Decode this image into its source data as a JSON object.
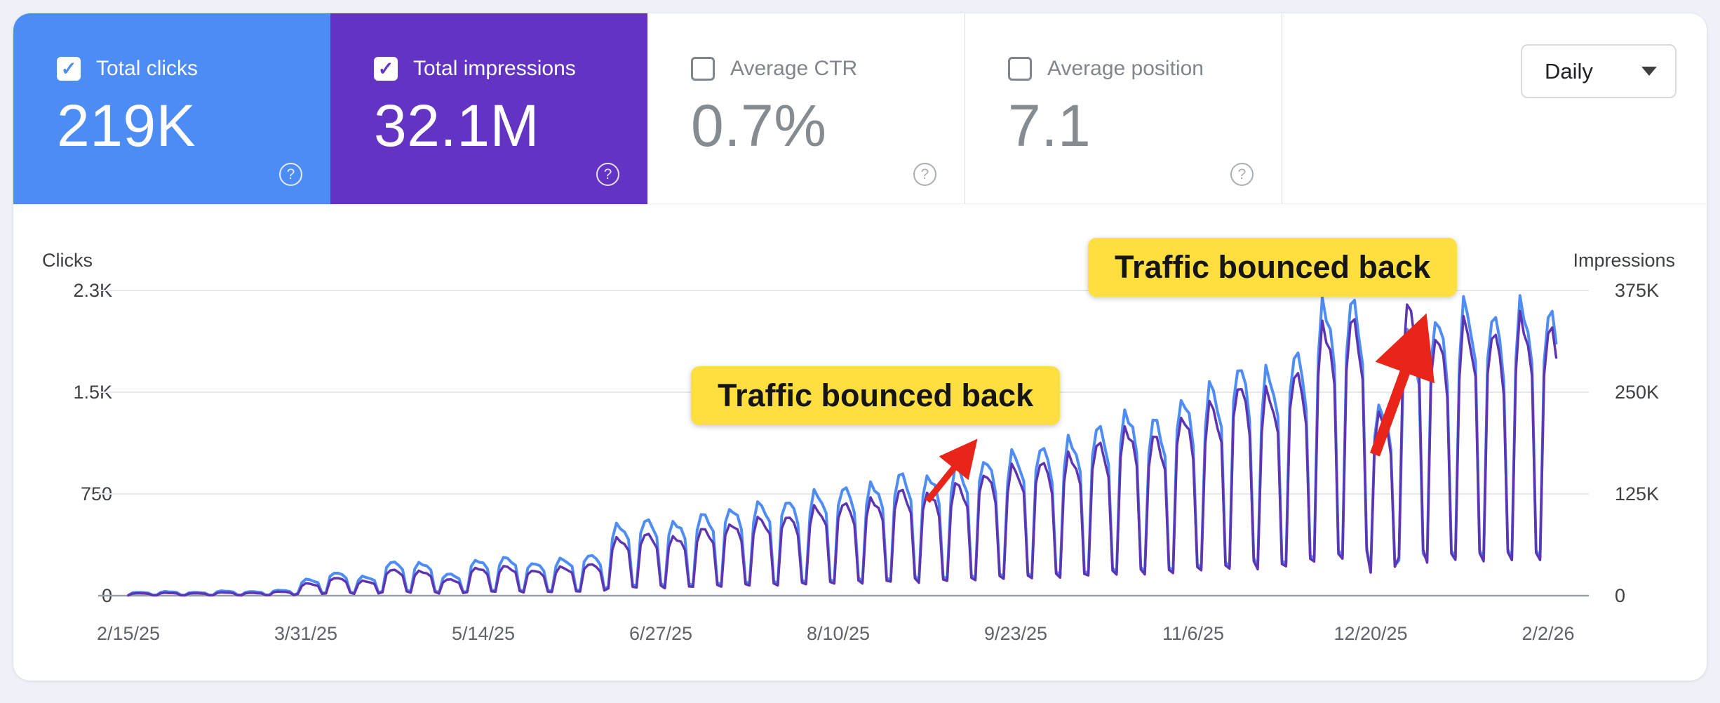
{
  "controls": {
    "granularity": "Daily"
  },
  "metrics": [
    {
      "id": "total-clicks",
      "label": "Total clicks",
      "value": "219K",
      "checked": true,
      "bg": "#4e8cf5",
      "label_color": "#ffffff",
      "value_color": "#ffffff",
      "accent": "#4e8cf5",
      "help_color": "#ffffff"
    },
    {
      "id": "total-impressions",
      "label": "Total impressions",
      "value": "32.1M",
      "checked": true,
      "bg": "#6334c4",
      "label_color": "#ffffff",
      "value_color": "#ffffff",
      "accent": "#6334c4",
      "help_color": "#ffffff"
    },
    {
      "id": "average-ctr",
      "label": "Average CTR",
      "value": "0.7%",
      "checked": false,
      "bg": "#ffffff",
      "label_color": "#80868b",
      "value_color": "#868b90",
      "accent": "#80868b",
      "help_color": "#9aa0a6"
    },
    {
      "id": "average-position",
      "label": "Average position",
      "value": "7.1",
      "checked": false,
      "bg": "#ffffff",
      "label_color": "#80868b",
      "value_color": "#868b90",
      "accent": "#80868b",
      "help_color": "#9aa0a6"
    }
  ],
  "annotations": [
    {
      "text": "Traffic bounced back"
    },
    {
      "text": "Traffic bounced back"
    }
  ],
  "chart_data": {
    "type": "line",
    "granularity": "Daily",
    "left_axis": {
      "title": "Clicks",
      "ticks": [
        "2.3K",
        "1.5K",
        "750",
        "0"
      ],
      "max": 2250
    },
    "right_axis": {
      "title": "Impressions",
      "ticks": [
        "375K",
        "250K",
        "125K",
        "0"
      ],
      "max": 375,
      "unit": "K"
    },
    "x_ticks": [
      "2/15/25",
      "3/31/25",
      "5/14/25",
      "6/27/25",
      "8/10/25",
      "9/23/25",
      "11/6/25",
      "12/20/25",
      "2/2/26"
    ],
    "grid": true,
    "legend": "none",
    "day_pattern": [
      0.13,
      0.82,
      1.0,
      0.97,
      0.9,
      0.78,
      0.16
    ],
    "series": [
      {
        "name": "Clicks",
        "color": "#4e8df6",
        "axis": "left",
        "weekly_peaks": [
          25,
          30,
          25,
          35,
          30,
          40,
          120,
          170,
          140,
          250,
          240,
          160,
          260,
          280,
          240,
          270,
          300,
          520,
          560,
          540,
          600,
          640,
          680,
          700,
          760,
          800,
          820,
          900,
          880,
          950,
          1000,
          1050,
          1100,
          1150,
          1250,
          1350,
          1300,
          1450,
          1550,
          1700,
          1650,
          1800,
          2150,
          2180,
          1400,
          1950,
          2050,
          2150,
          2080,
          2150,
          2100
        ]
      },
      {
        "name": "Impressions",
        "color": "#5e35b1",
        "axis": "right",
        "weekly_peaks": [
          3,
          3.5,
          3,
          4,
          3.5,
          5,
          15,
          22,
          18,
          32,
          30,
          20,
          34,
          36,
          31,
          35,
          39,
          70,
          76,
          72,
          82,
          88,
          95,
          98,
          108,
          114,
          118,
          130,
          126,
          137,
          150,
          158,
          165,
          172,
          188,
          205,
          196,
          220,
          235,
          260,
          250,
          275,
          330,
          340,
          225,
          355,
          320,
          335,
          325,
          340,
          330
        ]
      }
    ],
    "events": [
      {
        "label": "Traffic bounced back",
        "near_x": "9/23/25"
      },
      {
        "label": "Traffic bounced back",
        "near_x": "12/20/25"
      }
    ],
    "arrow_color": "#e9251a"
  }
}
